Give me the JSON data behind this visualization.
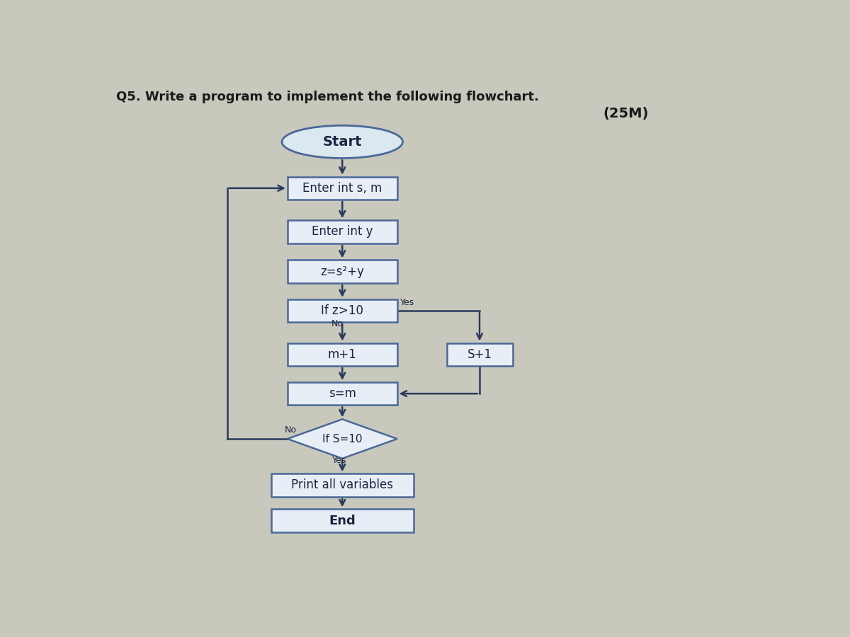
{
  "title": "Q5. Write a program to implement the following flowchart.",
  "marks": "(25M)",
  "bg_color": "#c8c8bc",
  "box_fill": "#e8eef5",
  "box_edge": "#4a6898",
  "text_color": "#1a2540",
  "arrow_color": "#2a3a5a",
  "start_fill": "#dce8f0",
  "nodes_labels": {
    "start": "Start",
    "input1": "Enter int s, m",
    "input2": "Enter int y",
    "calc": "z=s²+y",
    "if1": "If z>10",
    "m1": "m+1",
    "s1": "S+1",
    "sm": "s=m",
    "if2": "If S=10",
    "print": "Print all variables",
    "end": "End"
  }
}
